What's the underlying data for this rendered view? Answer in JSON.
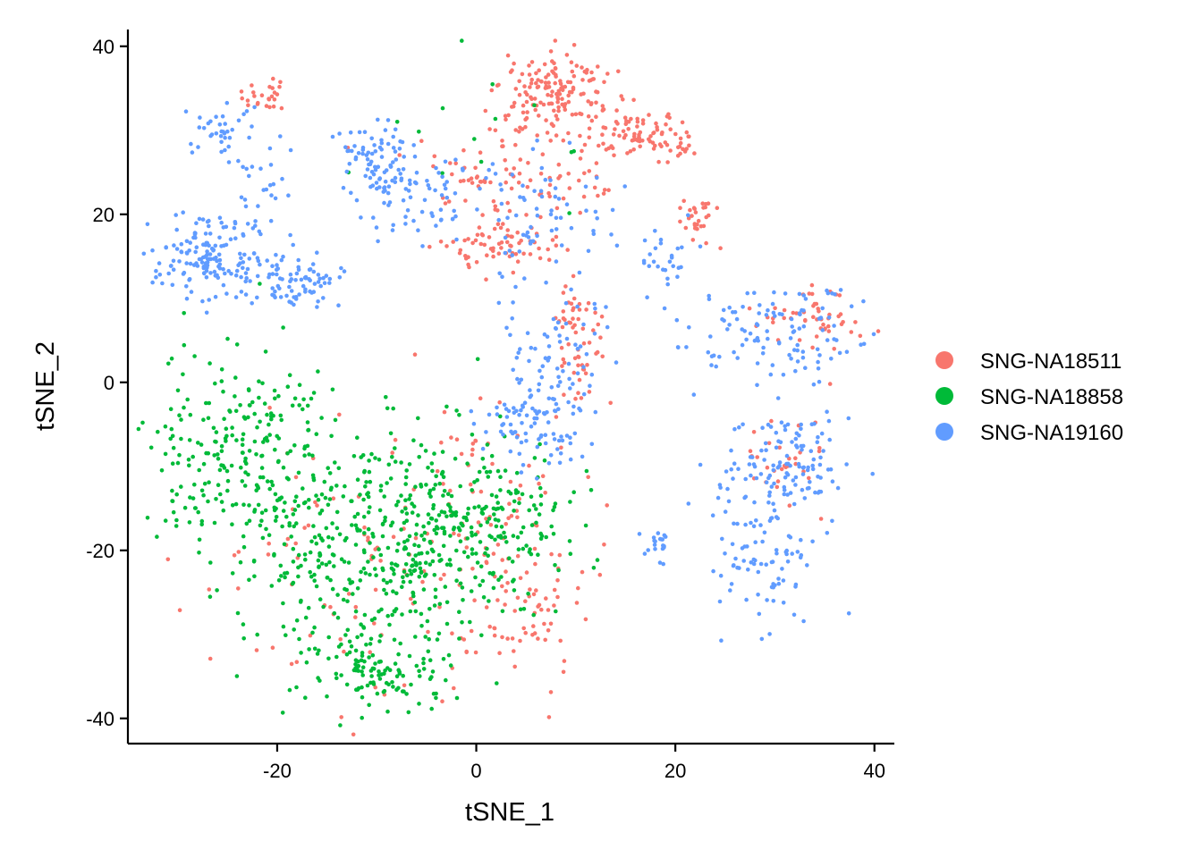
{
  "chart_data": {
    "type": "scatter",
    "title": "",
    "xlabel": "tSNE_1",
    "ylabel": "tSNE_2",
    "xlim": [
      -35,
      42
    ],
    "ylim": [
      -43,
      42
    ],
    "x_ticks": [
      -20,
      0,
      20,
      40
    ],
    "x_tick_labels": [
      "-20",
      "0",
      "20",
      "40"
    ],
    "y_ticks": [
      -40,
      -20,
      0,
      20,
      40
    ],
    "y_tick_labels": [
      "-40",
      "-20",
      "0",
      "20",
      "40"
    ],
    "grid": false,
    "legend_position": "right",
    "series": [
      {
        "name": "SNG-NA18511",
        "color": "#F8766D",
        "clusters": [
          {
            "cx": -21,
            "cy": 34,
            "sx": 1.2,
            "sy": 1.5,
            "n": 25
          },
          {
            "cx": 8,
            "cy": 34,
            "sx": 3,
            "sy": 2.5,
            "n": 160
          },
          {
            "cx": 17,
            "cy": 29,
            "sx": 2.5,
            "sy": 1.5,
            "n": 90
          },
          {
            "cx": 3,
            "cy": 25,
            "sx": 5,
            "sy": 2.5,
            "n": 90
          },
          {
            "cx": 3,
            "cy": 16,
            "sx": 3,
            "sy": 1.5,
            "n": 70
          },
          {
            "cx": 22.5,
            "cy": 19.5,
            "sx": 1.2,
            "sy": 1.5,
            "n": 30
          },
          {
            "cx": 10,
            "cy": 5,
            "sx": 1.3,
            "sy": 4,
            "n": 60
          },
          {
            "cx": 34,
            "cy": 8,
            "sx": 3,
            "sy": 2,
            "n": 50
          },
          {
            "cx": 30,
            "cy": -9,
            "sx": 2.5,
            "sy": 3,
            "n": 30
          },
          {
            "cx": -12,
            "cy": -22,
            "sx": 8,
            "sy": 8,
            "n": 90
          },
          {
            "cx": 2,
            "cy": -20,
            "sx": 4,
            "sy": 8,
            "n": 90
          },
          {
            "cx": 5,
            "cy": -28,
            "sx": 3,
            "sy": 3,
            "n": 40
          }
        ]
      },
      {
        "name": "SNG-NA18858",
        "color": "#00BA38",
        "clusters": [
          {
            "cx": -23,
            "cy": -8,
            "sx": 4.5,
            "sy": 7,
            "n": 260
          },
          {
            "cx": -12,
            "cy": -20,
            "sx": 6,
            "sy": 8,
            "n": 320
          },
          {
            "cx": -3,
            "cy": -18,
            "sx": 5,
            "sy": 7,
            "n": 220
          },
          {
            "cx": -10,
            "cy": -35,
            "sx": 4,
            "sy": 2.5,
            "n": 90
          },
          {
            "cx": 5,
            "cy": -15,
            "sx": 3.5,
            "sy": 3,
            "n": 70
          },
          {
            "cx": 2,
            "cy": 28,
            "sx": 5,
            "sy": 5,
            "n": 14
          }
        ]
      },
      {
        "name": "SNG-NA19160",
        "color": "#619CFF",
        "clusters": [
          {
            "cx": -26,
            "cy": 30,
            "sx": 1.5,
            "sy": 1.5,
            "n": 35
          },
          {
            "cx": -22,
            "cy": 23,
            "sx": 1.5,
            "sy": 4,
            "n": 30
          },
          {
            "cx": -27,
            "cy": 15,
            "sx": 2.5,
            "sy": 2.5,
            "n": 150
          },
          {
            "cx": -18,
            "cy": 12,
            "sx": 2.5,
            "sy": 1.5,
            "n": 80
          },
          {
            "cx": -10,
            "cy": 26,
            "sx": 2,
            "sy": 2.5,
            "n": 80
          },
          {
            "cx": -5,
            "cy": 22,
            "sx": 3,
            "sy": 3,
            "n": 60
          },
          {
            "cx": 6,
            "cy": 20,
            "sx": 5,
            "sy": 3,
            "n": 70
          },
          {
            "cx": 8,
            "cy": 4,
            "sx": 3,
            "sy": 5,
            "n": 80
          },
          {
            "cx": 6,
            "cy": -5,
            "sx": 3,
            "sy": 2.5,
            "n": 80
          },
          {
            "cx": 30,
            "cy": 6,
            "sx": 5,
            "sy": 3,
            "n": 120
          },
          {
            "cx": 31,
            "cy": -10,
            "sx": 3.5,
            "sy": 3,
            "n": 120
          },
          {
            "cx": 29,
            "cy": -20,
            "sx": 2.5,
            "sy": 4,
            "n": 90
          },
          {
            "cx": 18,
            "cy": -19,
            "sx": 0.6,
            "sy": 1,
            "n": 20
          },
          {
            "cx": 19,
            "cy": 15,
            "sx": 1.5,
            "sy": 2.5,
            "n": 25
          }
        ]
      }
    ]
  }
}
